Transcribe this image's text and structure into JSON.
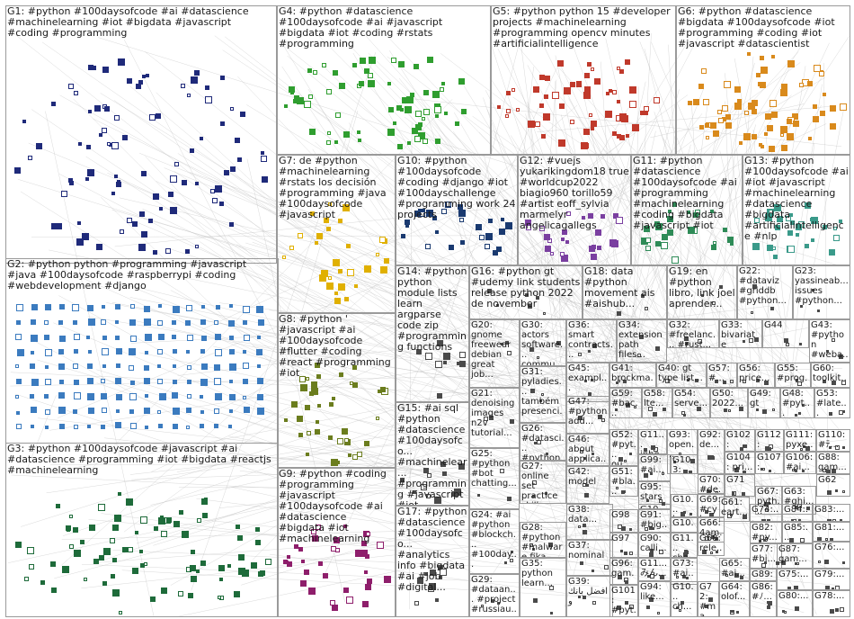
{
  "graph": {
    "colors": {
      "edge": "#b9b9b9",
      "G1": "#1f2a7a",
      "G2": "#3b7bbf",
      "G3": "#1e6b3a",
      "G4": "#2f9e2f",
      "G5": "#c0392b",
      "G6": "#d98a1c",
      "G7": "#e0b000",
      "G8": "#6b7d1e",
      "G9": "#8e1e6b",
      "G10": "#1a3a70",
      "G11": "#2e8b57",
      "G12": "#7a3fa0",
      "G13": "#3a9a8a",
      "misc": "#4a4a4a"
    },
    "groups": [
      {
        "id": "G1",
        "label": "G1: #python #100daysofcode #ai #datascience #machinelearning #iot #bigdata #javascript #coding #programming"
      },
      {
        "id": "G2",
        "label": "G2: #python python #programming #javascript #java #100daysofcode #raspberrypi #coding #webdevelopment #django"
      },
      {
        "id": "G3",
        "label": "G3: #python #100daysofcode #javascript #ai #datascience #programming #iot #bigdata #reactjs #machinelearning"
      },
      {
        "id": "G4",
        "label": "G4: #python #datascience #100daysofcode #ai #javascript #bigdata #iot #coding #rstats #programming"
      },
      {
        "id": "G5",
        "label": "G5: #python python 15 #developer projects #machinelearning #programming opencv minutes #artificialintelligence"
      },
      {
        "id": "G6",
        "label": "G6: #python #datascience #bigdata #100daysofcode #iot #programming #coding #iot #javascript #datascientist"
      },
      {
        "id": "G7",
        "label": "G7: de #python #machinelearning #rstats los decisión #programming #java #100daysofcode #javascript"
      },
      {
        "id": "G8",
        "label": "G8: #python ' #javascript #ai #100daysofcode #flutter #coding #react #programming #iot"
      },
      {
        "id": "G9",
        "label": "G9: #python #coding #programming #javascript #100daysofcode #ai #datascience #bigdata #iot #machinelearning"
      },
      {
        "id": "G10",
        "label": "G10: #python #100daysofcode #coding #django #iot #100dayschallenge #programming work 24 projects"
      },
      {
        "id": "G11",
        "label": "G11: #python #datascience #100daysofcode #ai #programming #machinelearning #coding #bigdata #javascript #iot"
      },
      {
        "id": "G12",
        "label": "G12: #vuejs yukarikingdom18 true #worldcup2022 biagio960 torillo59 #artist eoff_sylvia marmelyr angelicagallegs"
      },
      {
        "id": "G13",
        "label": "G13: #python #100daysofcode #ai #iot #javascript #machinelearning #datascience #bigdata #artificialintelligence #nlp"
      },
      {
        "id": "G14",
        "label": "G14: #python python module lists learn argparse code zip #programming functions"
      },
      {
        "id": "G15",
        "label": "G15: #ai sql #python #datascience #100daysofco... #machinelear... #programming #javascript #iot #analytics"
      },
      {
        "id": "G16",
        "label": "G16: #python gt #udemy link students release python 2022 de november"
      },
      {
        "id": "G17",
        "label": "G17: #python #datascience #100daysofco... #analytics info #bigdata #ai #job #digital..."
      },
      {
        "id": "G18",
        "label": "G18: data #python movement ais #aishub..."
      },
      {
        "id": "G19",
        "label": "G19: en #python libro, link joel aprender..."
      },
      {
        "id": "G20",
        "label": "G20: gnome freewear debian great job..."
      },
      {
        "id": "G21",
        "label": "G21: denoising images n2v tutorial..."
      },
      {
        "id": "G22",
        "label": "G22: #dataviz #griddb #python..."
      },
      {
        "id": "G23",
        "label": "G23: yassineab... issues #python..."
      },
      {
        "id": "G24",
        "label": "G24: #ai #python #blockch... #100day..."
      },
      {
        "id": "G25",
        "label": "G25: #python #bot chatting..."
      },
      {
        "id": "G26",
        "label": "G26: #datasci... #python #analyti..."
      },
      {
        "id": "G27",
        "label": "G27: online set practice skills..."
      },
      {
        "id": "G28",
        "label": "G28: #python #malware fika..."
      },
      {
        "id": "G29",
        "label": "G29: #dataan... #project #russiau..."
      },
      {
        "id": "G30",
        "label": "G30: actors software... commu..."
      },
      {
        "id": "G31",
        "label": "G31: pyladies... também presenci..."
      },
      {
        "id": "G32",
        "label": "G32: #freelanc... #rust..."
      },
      {
        "id": "G33",
        "label": "G33: bivariate normal..."
      },
      {
        "id": "G34",
        "label": "G34: extension path files..."
      },
      {
        "id": "G35",
        "label": "G35: python learn..."
      },
      {
        "id": "G36",
        "label": "G36: smart contracts..."
      },
      {
        "id": "G37",
        "label": "G37: nominal"
      },
      {
        "id": "G38",
        "label": "G38: data..."
      },
      {
        "id": "G39",
        "label": "G39: افضل بانك و"
      },
      {
        "id": "G40",
        "label": "G40: gt type list..."
      },
      {
        "id": "G41",
        "label": "G41: brockma..."
      },
      {
        "id": "G42",
        "label": "G42: model"
      },
      {
        "id": "G43",
        "label": "G43: #python #weba..."
      },
      {
        "id": "G44",
        "label": "G44"
      },
      {
        "id": "G45",
        "label": "G45: exampl..."
      },
      {
        "id": "G46",
        "label": "G46: about applica..."
      },
      {
        "id": "G47",
        "label": "G47: #python add..."
      },
      {
        "id": "G48",
        "label": "G48: #pyt..."
      },
      {
        "id": "G49",
        "label": "G49: gt"
      },
      {
        "id": "G50",
        "label": "G50: 2022..."
      },
      {
        "id": "G51",
        "label": "G51: #bla... anal..."
      },
      {
        "id": "G52",
        "label": "G52: #pyt... ou..."
      },
      {
        "id": "G53",
        "label": "G53: #late..."
      },
      {
        "id": "G54",
        "label": "G54: serve..."
      },
      {
        "id": "G55",
        "label": "G55: #prog..."
      },
      {
        "id": "G56",
        "label": "G56: price..."
      },
      {
        "id": "G57",
        "label": "G57: #..."
      },
      {
        "id": "G58",
        "label": "G58: lte..."
      },
      {
        "id": "G59",
        "label": "G59: #bac..."
      },
      {
        "id": "G60",
        "label": "G60: toolkit..."
      },
      {
        "id": "G61",
        "label": "G61: eart..."
      },
      {
        "id": "G62",
        "label": "G62"
      },
      {
        "id": "G63",
        "label": "G63: #ghi..."
      },
      {
        "id": "G64",
        "label": "G64: olof..."
      },
      {
        "id": "G65",
        "label": "G65: #ai..."
      },
      {
        "id": "G66",
        "label": "G66: 4am..."
      },
      {
        "id": "G67",
        "label": "G67: pyth..."
      },
      {
        "id": "G68",
        "label": "G68: rele..."
      },
      {
        "id": "G69",
        "label": "G69: #cyb..."
      },
      {
        "id": "G70",
        "label": "G70: #de..."
      },
      {
        "id": "G71",
        "label": "G71"
      },
      {
        "id": "G72",
        "label": "G72: #ma..."
      },
      {
        "id": "G73",
        "label": "G73: #ai..."
      },
      {
        "id": "G74",
        "label": "G74:..."
      },
      {
        "id": "G75",
        "label": "G75:..."
      },
      {
        "id": "G76",
        "label": "G76:..."
      },
      {
        "id": "G77",
        "label": "G77: #bi..."
      },
      {
        "id": "G78",
        "label": "G78:..."
      },
      {
        "id": "G79",
        "label": "G79:..."
      },
      {
        "id": "G80",
        "label": "G80:..."
      },
      {
        "id": "G81",
        "label": "G81:..."
      },
      {
        "id": "G82",
        "label": "G82: #py..."
      },
      {
        "id": "G83",
        "label": "G83:..."
      },
      {
        "id": "G84",
        "label": "G84:..."
      },
      {
        "id": "G85",
        "label": "G85:..."
      },
      {
        "id": "G86",
        "label": "G86: #ﾉ..."
      },
      {
        "id": "G87",
        "label": "G87: gam..."
      },
      {
        "id": "G88",
        "label": "G88: gam..."
      },
      {
        "id": "G89",
        "label": "G89: datahub..."
      },
      {
        "id": "G90",
        "label": "G90: calli..."
      },
      {
        "id": "G91",
        "label": "G91: #big..."
      },
      {
        "id": "G92",
        "label": "G92: de..."
      },
      {
        "id": "G93",
        "label": "G93: open..."
      },
      {
        "id": "G94",
        "label": "G94: like..."
      },
      {
        "id": "G95",
        "label": "G95: stars"
      },
      {
        "id": "G96",
        "label": "G96: gam..."
      },
      {
        "id": "G97",
        "label": "G97"
      },
      {
        "id": "G98",
        "label": "G98"
      },
      {
        "id": "G99",
        "label": "G99: #ai..."
      },
      {
        "id": "G100",
        "label": "G10... ch..."
      },
      {
        "id": "G101",
        "label": "G101: #pyt..."
      },
      {
        "id": "G102",
        "label": "G102: gene..."
      },
      {
        "id": "G103",
        "label": "G103: pyth..."
      },
      {
        "id": "G104",
        "label": "G104: pri..."
      },
      {
        "id": "G105",
        "label": "G10... keep..."
      },
      {
        "id": "G106",
        "label": "G106: #ai..."
      },
      {
        "id": "G107",
        "label": "G107: worl..."
      },
      {
        "id": "G108",
        "label": "G10... 456..."
      },
      {
        "id": "G109",
        "label": "G10... hack..."
      },
      {
        "id": "G110",
        "label": "G110: #ﾃ..."
      },
      {
        "id": "G111",
        "label": "G111: pyxe..."
      },
      {
        "id": "G112",
        "label": "G112: sale..."
      },
      {
        "id": "G113",
        "label": "G11... inhe..."
      },
      {
        "id": "G114",
        "label": "G11... cha..."
      },
      {
        "id": "G115",
        "label": "G11... みん..."
      }
    ]
  }
}
